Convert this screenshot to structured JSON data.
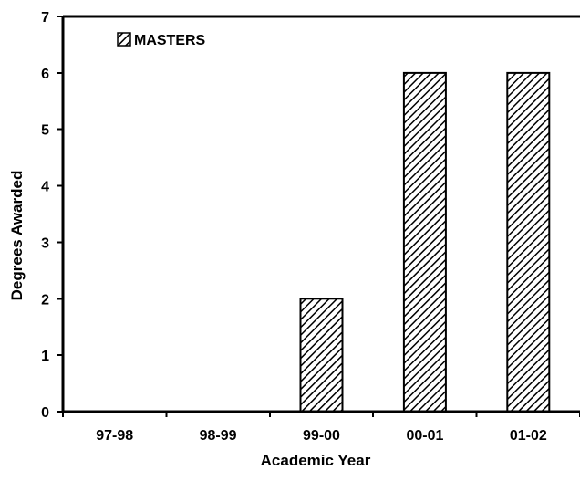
{
  "chart_data": {
    "type": "bar",
    "title": "",
    "xlabel": "Academic Year",
    "ylabel": "Degrees Awarded",
    "categories": [
      "97-98",
      "98-99",
      "99-00",
      "00-01",
      "01-02"
    ],
    "series": [
      {
        "name": "MASTERS",
        "values": [
          0,
          0,
          2,
          6,
          6
        ]
      }
    ],
    "ylim": [
      0,
      7
    ],
    "yticks": [
      "0",
      "1",
      "2",
      "3",
      "4",
      "5",
      "6",
      "7"
    ],
    "grid": false,
    "legend_position": "top-left",
    "bar_pattern": "diagonal-hatch"
  },
  "colors": {
    "background": "#ffffff",
    "axis": "#000000",
    "bar_fill": "#ffffff",
    "bar_hatch": "#000000"
  }
}
